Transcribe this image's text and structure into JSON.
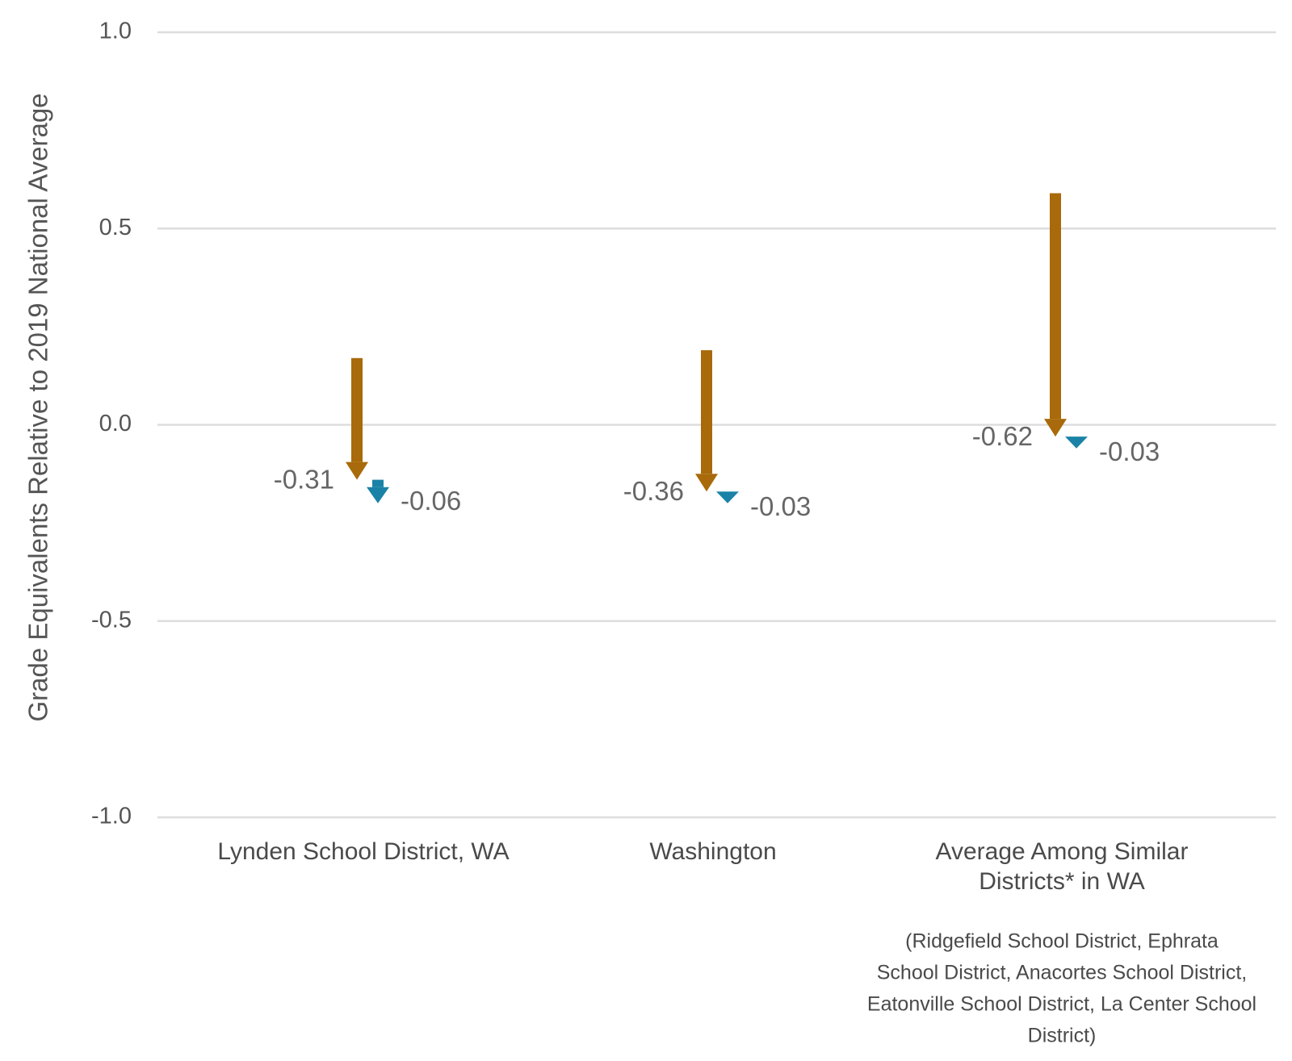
{
  "chart_data": {
    "type": "arrow",
    "ylabel": "Grade Equivalents Relative to 2019 National Average",
    "ylim": [
      -1.0,
      1.0
    ],
    "yticks": [
      {
        "value": 1.0,
        "label": "1.0"
      },
      {
        "value": 0.5,
        "label": "0.5"
      },
      {
        "value": 0.0,
        "label": "0.0"
      },
      {
        "value": -0.5,
        "label": "-0.5"
      },
      {
        "value": -1.0,
        "label": "-1.0"
      }
    ],
    "grid": true,
    "colors": {
      "first": "#a86a0a",
      "second": "#1a82a6"
    },
    "categories": [
      {
        "label_lines": [
          "Lynden School District, WA"
        ],
        "first": {
          "from": 0.17,
          "to": -0.14,
          "label": "-0.31"
        },
        "second": {
          "from": -0.14,
          "to": -0.2,
          "label": "-0.06"
        }
      },
      {
        "label_lines": [
          "Washington"
        ],
        "first": {
          "from": 0.19,
          "to": -0.17,
          "label": "-0.36"
        },
        "second": {
          "from": -0.17,
          "to": -0.2,
          "label": "-0.03"
        }
      },
      {
        "label_lines": [
          "Average Among Similar",
          "Districts* in WA"
        ],
        "first": {
          "from": 0.59,
          "to": -0.03,
          "label": "-0.62"
        },
        "second": {
          "from": -0.03,
          "to": -0.06,
          "label": "-0.03"
        },
        "note_lines": [
          "(Ridgefield School District, Ephrata",
          "School District, Anacortes School District,",
          "Eatonville School District, La Center School",
          "District)"
        ]
      }
    ]
  }
}
